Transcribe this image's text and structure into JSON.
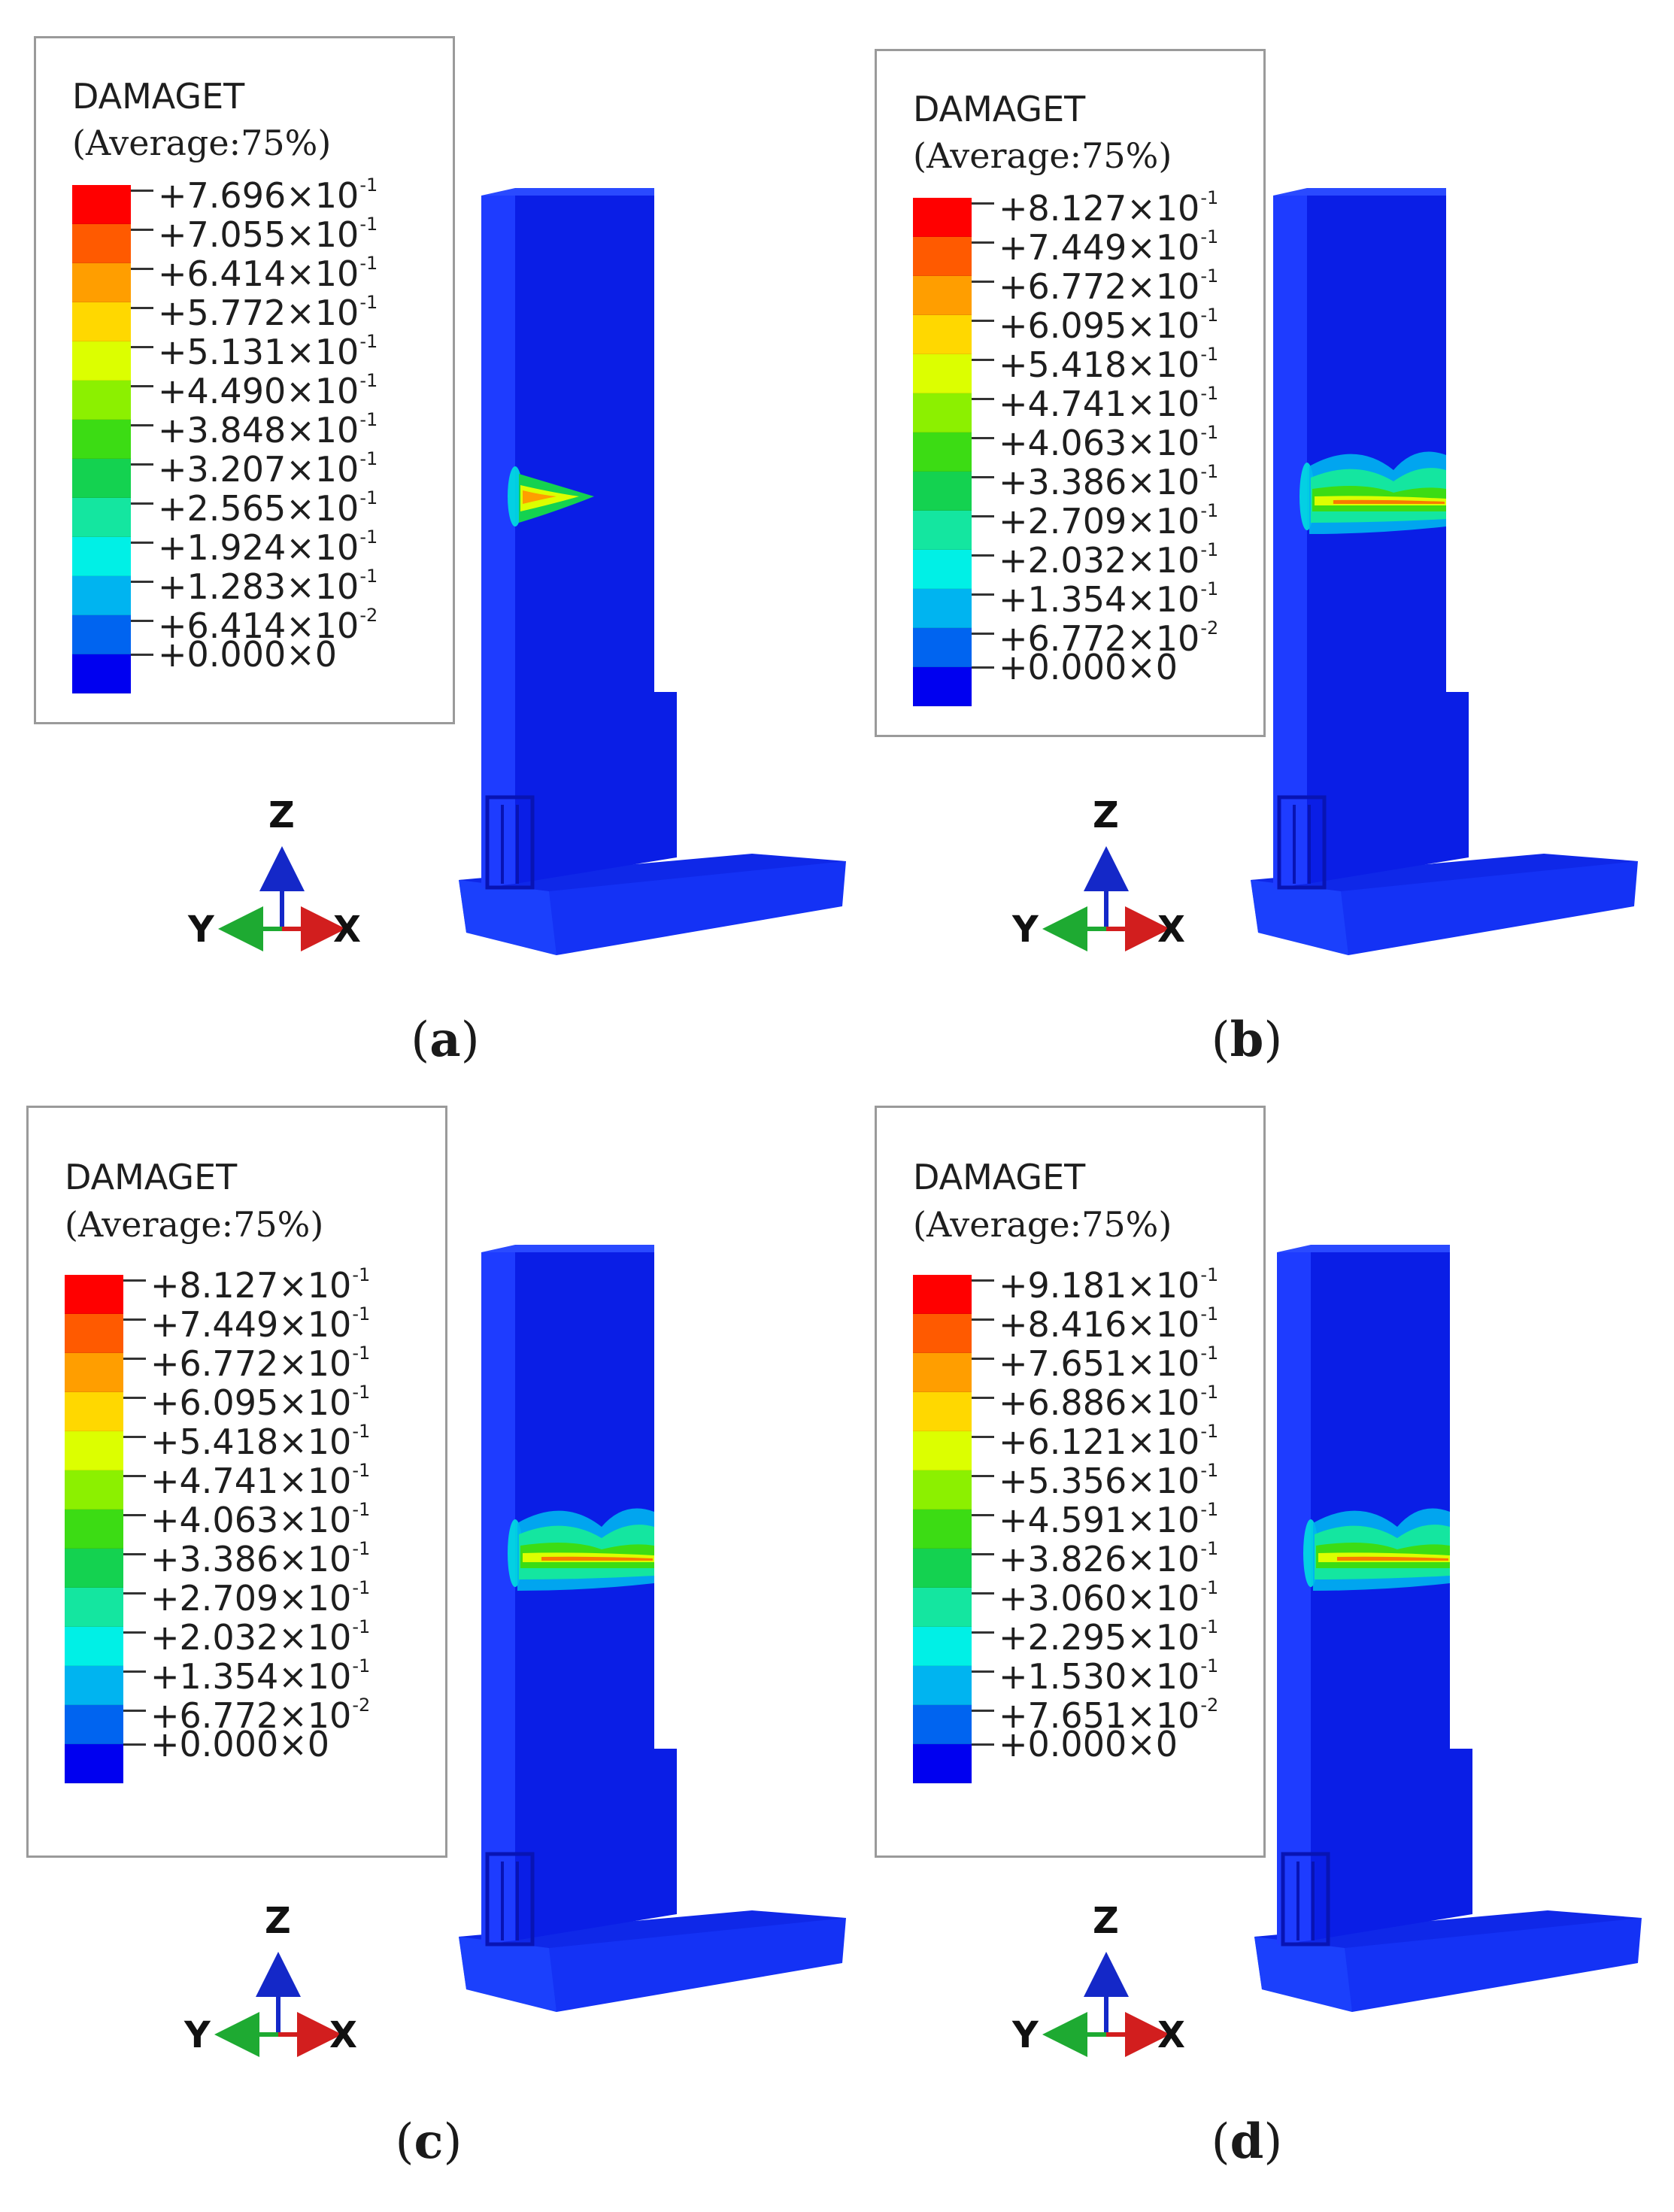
{
  "panels": [
    {
      "id": "a",
      "caption_letter": "a",
      "legend_title": "DAMAGET",
      "legend_subtitle": "(Average:75%)",
      "ticks": [
        {
          "mant": "+7.696×10",
          "exp": "-1"
        },
        {
          "mant": "+7.055×10",
          "exp": "-1"
        },
        {
          "mant": "+6.414×10",
          "exp": "-1"
        },
        {
          "mant": "+5.772×10",
          "exp": "-1"
        },
        {
          "mant": "+5.131×10",
          "exp": "-1"
        },
        {
          "mant": "+4.490×10",
          "exp": "-1"
        },
        {
          "mant": "+3.848×10",
          "exp": "-1"
        },
        {
          "mant": "+3.207×10",
          "exp": "-1"
        },
        {
          "mant": "+2.565×10",
          "exp": "-1"
        },
        {
          "mant": "+1.924×10",
          "exp": "-1"
        },
        {
          "mant": "+1.283×10",
          "exp": "-1"
        },
        {
          "mant": "+6.414×10",
          "exp": "-2"
        },
        {
          "mant": "+0.000×0",
          "exp": ""
        }
      ],
      "axes": {
        "z": "Z",
        "y": "Y",
        "x": "X"
      },
      "damage_extent": 0.35
    },
    {
      "id": "b",
      "caption_letter": "b",
      "legend_title": "DAMAGET",
      "legend_subtitle": "(Average:75%)",
      "ticks": [
        {
          "mant": "+8.127×10",
          "exp": "-1"
        },
        {
          "mant": "+7.449×10",
          "exp": "-1"
        },
        {
          "mant": "+6.772×10",
          "exp": "-1"
        },
        {
          "mant": "+6.095×10",
          "exp": "-1"
        },
        {
          "mant": "+5.418×10",
          "exp": "-1"
        },
        {
          "mant": "+4.741×10",
          "exp": "-1"
        },
        {
          "mant": "+4.063×10",
          "exp": "-1"
        },
        {
          "mant": "+3.386×10",
          "exp": "-1"
        },
        {
          "mant": "+2.709×10",
          "exp": "-1"
        },
        {
          "mant": "+2.032×10",
          "exp": "-1"
        },
        {
          "mant": "+1.354×10",
          "exp": "-1"
        },
        {
          "mant": "+6.772×10",
          "exp": "-2"
        },
        {
          "mant": "+0.000×0",
          "exp": ""
        }
      ],
      "axes": {
        "z": "Z",
        "y": "Y",
        "x": "X"
      },
      "damage_extent": 1.0
    },
    {
      "id": "c",
      "caption_letter": "c",
      "legend_title": "DAMAGET",
      "legend_subtitle": "(Average:75%)",
      "ticks": [
        {
          "mant": "+8.127×10",
          "exp": "-1"
        },
        {
          "mant": "+7.449×10",
          "exp": "-1"
        },
        {
          "mant": "+6.772×10",
          "exp": "-1"
        },
        {
          "mant": "+6.095×10",
          "exp": "-1"
        },
        {
          "mant": "+5.418×10",
          "exp": "-1"
        },
        {
          "mant": "+4.741×10",
          "exp": "-1"
        },
        {
          "mant": "+4.063×10",
          "exp": "-1"
        },
        {
          "mant": "+3.386×10",
          "exp": "-1"
        },
        {
          "mant": "+2.709×10",
          "exp": "-1"
        },
        {
          "mant": "+2.032×10",
          "exp": "-1"
        },
        {
          "mant": "+1.354×10",
          "exp": "-1"
        },
        {
          "mant": "+6.772×10",
          "exp": "-2"
        },
        {
          "mant": "+0.000×0",
          "exp": ""
        }
      ],
      "axes": {
        "z": "Z",
        "y": "Y",
        "x": "X"
      },
      "damage_extent": 1.0
    },
    {
      "id": "d",
      "caption_letter": "d",
      "legend_title": "DAMAGET",
      "legend_subtitle": "(Average:75%)",
      "ticks": [
        {
          "mant": "+9.181×10",
          "exp": "-1"
        },
        {
          "mant": "+8.416×10",
          "exp": "-1"
        },
        {
          "mant": "+7.651×10",
          "exp": "-1"
        },
        {
          "mant": "+6.886×10",
          "exp": "-1"
        },
        {
          "mant": "+6.121×10",
          "exp": "-1"
        },
        {
          "mant": "+5.356×10",
          "exp": "-1"
        },
        {
          "mant": "+4.591×10",
          "exp": "-1"
        },
        {
          "mant": "+3.826×10",
          "exp": "-1"
        },
        {
          "mant": "+3.060×10",
          "exp": "-1"
        },
        {
          "mant": "+2.295×10",
          "exp": "-1"
        },
        {
          "mant": "+1.530×10",
          "exp": "-1"
        },
        {
          "mant": "+7.651×10",
          "exp": "-2"
        },
        {
          "mant": "+0.000×0",
          "exp": ""
        }
      ],
      "axes": {
        "z": "Z",
        "y": "Y",
        "x": "X"
      },
      "damage_extent": 1.0
    }
  ],
  "colormap": [
    "#ff0000",
    "#ff5a00",
    "#ff9e00",
    "#ffd800",
    "#dcff00",
    "#8cf000",
    "#3cdc14",
    "#14d250",
    "#14e6a0",
    "#00f0e6",
    "#00b4f0",
    "#0064f0",
    "#0000f0"
  ],
  "model_colors": {
    "front": "#0a1ee6",
    "side": "#1e3cff",
    "base_top": "#0f28e8",
    "base_side": "#1432f5",
    "dark": "#0814b4"
  }
}
